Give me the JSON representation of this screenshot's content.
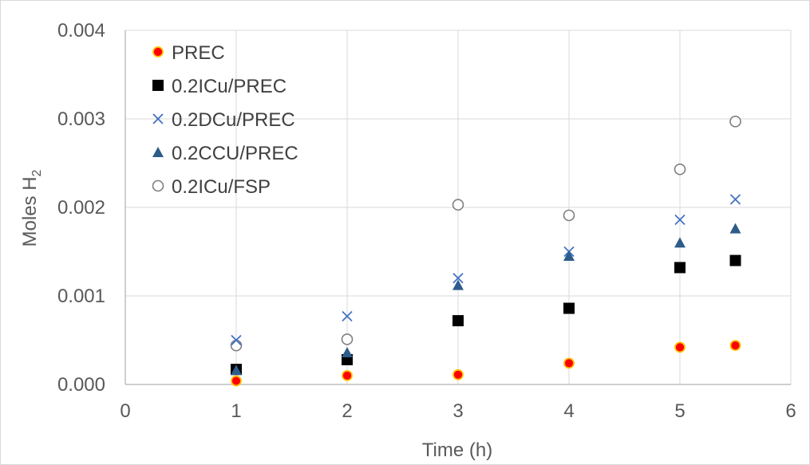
{
  "chart_data": {
    "type": "scatter",
    "title": "",
    "xlabel": "Time (h)",
    "ylabel": "Moles H",
    "ylabel_subscript": "2",
    "xlim": [
      0,
      6
    ],
    "ylim": [
      0,
      0.004
    ],
    "x_ticks": [
      "0",
      "1",
      "2",
      "3",
      "4",
      "5",
      "6"
    ],
    "y_ticks": [
      "0.000",
      "0.001",
      "0.002",
      "0.003",
      "0.004"
    ],
    "grid": true,
    "legend_position": "top-left",
    "series": [
      {
        "name": "PREC",
        "marker": "circle-filled",
        "color": "#ff0000",
        "edge": "#ffc000",
        "points": [
          {
            "x": 1,
            "y": 4e-05
          },
          {
            "x": 2,
            "y": 0.0001
          },
          {
            "x": 3,
            "y": 0.00011
          },
          {
            "x": 4,
            "y": 0.00024
          },
          {
            "x": 5,
            "y": 0.00042
          },
          {
            "x": 5.5,
            "y": 0.00044
          }
        ]
      },
      {
        "name": "0.2ICu/PREC",
        "marker": "square",
        "color": "#000000",
        "points": [
          {
            "x": 1,
            "y": 0.00017
          },
          {
            "x": 2,
            "y": 0.00028
          },
          {
            "x": 3,
            "y": 0.00072
          },
          {
            "x": 4,
            "y": 0.00086
          },
          {
            "x": 5,
            "y": 0.00132
          },
          {
            "x": 5.5,
            "y": 0.0014
          }
        ]
      },
      {
        "name": "0.2DCu/PREC",
        "marker": "x",
        "color": "#4472c4",
        "points": [
          {
            "x": 1,
            "y": 0.0005
          },
          {
            "x": 2,
            "y": 0.00077
          },
          {
            "x": 3,
            "y": 0.0012
          },
          {
            "x": 4,
            "y": 0.0015
          },
          {
            "x": 5,
            "y": 0.00186
          },
          {
            "x": 5.5,
            "y": 0.00209
          }
        ]
      },
      {
        "name": "0.2CCU/PREC",
        "marker": "triangle",
        "color": "#2e5c8a",
        "points": [
          {
            "x": 1,
            "y": 0.00016
          },
          {
            "x": 2,
            "y": 0.00036
          },
          {
            "x": 3,
            "y": 0.00112
          },
          {
            "x": 4,
            "y": 0.00145
          },
          {
            "x": 5,
            "y": 0.0016
          },
          {
            "x": 5.5,
            "y": 0.00176
          }
        ]
      },
      {
        "name": "0.2ICu/FSP",
        "marker": "circle-open",
        "color": "#7f7f7f",
        "points": [
          {
            "x": 1,
            "y": 0.00044
          },
          {
            "x": 2,
            "y": 0.00051
          },
          {
            "x": 3,
            "y": 0.00203
          },
          {
            "x": 4,
            "y": 0.00191
          },
          {
            "x": 5,
            "y": 0.00243
          },
          {
            "x": 5.5,
            "y": 0.00297
          }
        ]
      }
    ]
  }
}
